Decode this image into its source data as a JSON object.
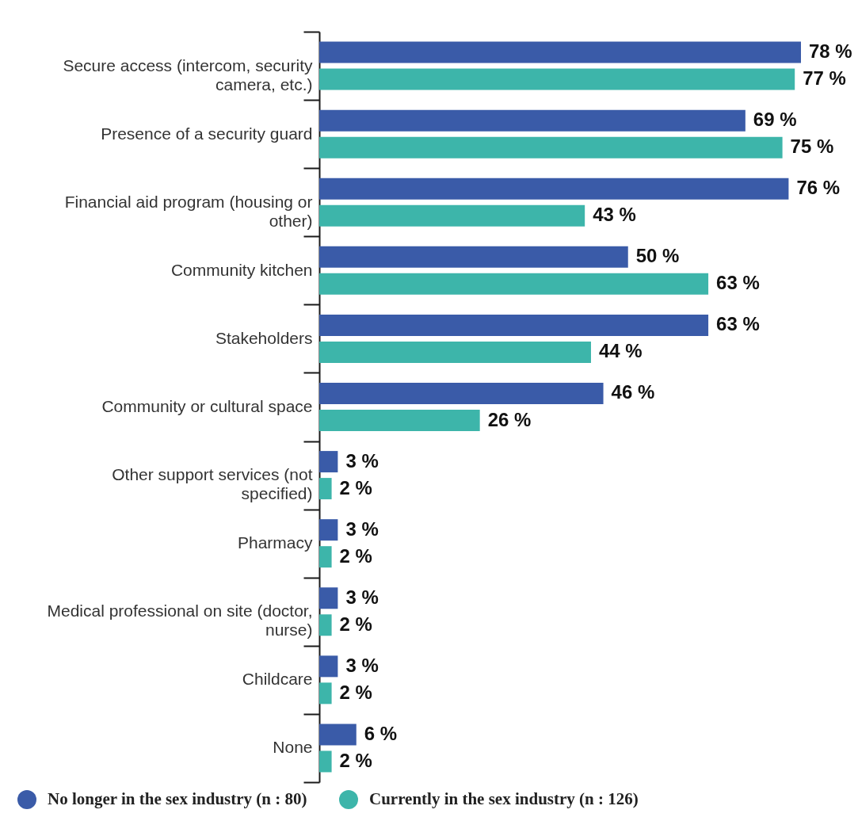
{
  "chart_data": {
    "type": "bar",
    "orientation": "horizontal",
    "categories": [
      "Secure access (intercom, security camera, etc.)",
      "Presence of a security guard",
      "Financial aid program (housing or other)",
      "Community kitchen",
      "Stakeholders",
      "Community or cultural space",
      "Other support services (not specified)",
      "Pharmacy",
      "Medical professional on site (doctor, nurse)",
      "Childcare",
      "None"
    ],
    "series": [
      {
        "name": "No longer in the sex industry (n : 80)",
        "color": "#3a5ba8",
        "values": [
          78,
          69,
          76,
          50,
          63,
          46,
          3,
          3,
          3,
          3,
          6
        ],
        "value_labels": [
          "78 %",
          "69 %",
          "76 %",
          "50 %",
          "63 %",
          "46 %",
          "3 %",
          "3 %",
          "3 %",
          "3 %",
          "6 %"
        ]
      },
      {
        "name": "Currently in the sex industry (n : 126)",
        "color": "#3db5aa",
        "values": [
          77,
          75,
          43,
          63,
          44,
          26,
          2,
          2,
          2,
          2,
          2
        ],
        "value_labels": [
          "77 %",
          "75 %",
          "43 %",
          "63 %",
          "44 %",
          "26 %",
          "2 %",
          "2 %",
          "2 %",
          "2 %",
          "2 %"
        ]
      }
    ],
    "legend": "bottom"
  }
}
